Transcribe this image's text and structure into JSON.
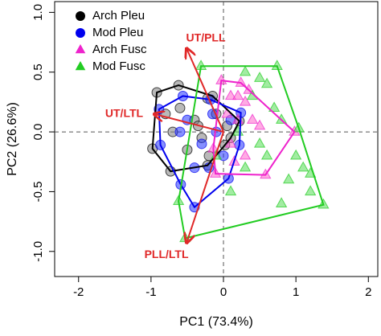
{
  "chart_data": {
    "type": "scatter",
    "x_label": "PC1 (73.4%)",
    "y_label": "PC2 (26.6%)",
    "xlim": [
      -2.33,
      2.13
    ],
    "ylim": [
      -1.21,
      1.09
    ],
    "xticks": [
      -2,
      -1,
      0,
      1,
      2
    ],
    "yticks": [
      {
        "value": -1,
        "label": "-1.0"
      },
      -0.5,
      {
        "value": 0,
        "label": "0.0"
      },
      0.5,
      {
        "value": 1,
        "label": "1.0"
      }
    ],
    "legend": "top-left",
    "series": [
      {
        "name": "Arch Pleu",
        "color": "#000000",
        "fill": "#7f7f7f",
        "marker": "circle",
        "x": [
          -0.92,
          -0.62,
          -0.22,
          0.22,
          0.02,
          -0.22,
          -0.73,
          -0.98,
          -0.6,
          -0.4,
          -0.3,
          -0.1,
          -0.5,
          -0.2,
          0.05,
          -0.7,
          -0.35,
          0.1,
          -0.15,
          -0.8
        ],
        "y": [
          0.33,
          0.39,
          0.28,
          0.09,
          -0.11,
          -0.28,
          -0.33,
          -0.14,
          0.2,
          0.1,
          -0.05,
          0.15,
          -0.15,
          -0.2,
          0.05,
          0.0,
          0.05,
          -0.05,
          0.3,
          0.15
        ]
      },
      {
        "name": "Mod Pleu",
        "color": "#0000ee",
        "fill": "#2233ff",
        "marker": "circle",
        "x": [
          -0.89,
          -0.56,
          -0.18,
          0.24,
          0.22,
          0.07,
          -0.4,
          -0.59,
          -0.87,
          -0.5,
          -0.3,
          -0.1,
          -0.2,
          0.0,
          -0.4,
          0.1,
          -0.6,
          -0.15
        ],
        "y": [
          0.19,
          0.3,
          0.27,
          0.16,
          -0.11,
          -0.39,
          -0.63,
          -0.44,
          -0.11,
          0.1,
          -0.1,
          0.0,
          -0.3,
          -0.2,
          -0.3,
          0.1,
          0.0,
          0.15
        ]
      },
      {
        "name": "Arch Fusc",
        "color": "#ee22cc",
        "fill": "#ff66cc",
        "marker": "triangle",
        "x": [
          -0.03,
          0.24,
          0.98,
          0.58,
          -0.11,
          -0.14,
          0.1,
          0.3,
          0.2,
          0.4,
          0.1,
          0.3,
          0.05,
          0.5,
          0.2,
          0.35,
          0.15
        ],
        "y": [
          0.43,
          0.41,
          0.0,
          -0.36,
          -0.35,
          -0.14,
          0.3,
          0.25,
          0.1,
          0.1,
          -0.1,
          -0.2,
          0.15,
          0.05,
          0.3,
          0.35,
          -0.25
        ]
      },
      {
        "name": "Mod Fusc",
        "color": "#22cc22",
        "fill": "#55dd55",
        "marker": "triangle",
        "x": [
          -0.31,
          0.74,
          1.04,
          1.38,
          -0.53,
          -0.62,
          0.3,
          0.5,
          0.6,
          0.4,
          0.7,
          0.8,
          1.0,
          1.1,
          1.2,
          0.9,
          0.8,
          0.6,
          0.2,
          -0.1,
          0.1,
          1.2,
          0.5,
          0.3
        ],
        "y": [
          0.55,
          0.55,
          0.03,
          -0.61,
          -0.89,
          -0.58,
          0.5,
          0.45,
          0.4,
          0.3,
          0.2,
          0.1,
          -0.2,
          -0.3,
          -0.35,
          -0.4,
          -0.6,
          -0.2,
          0.0,
          -0.2,
          -0.5,
          -0.5,
          -0.1,
          -0.3
        ]
      }
    ],
    "arrow_color": "#e02828",
    "arrows": [
      {
        "label": "UT/PLL",
        "x": -0.51,
        "y": 0.7
      },
      {
        "label": "UT/LTL",
        "x": -0.96,
        "y": 0.15
      },
      {
        "label": "PLL/LTL",
        "x": -0.51,
        "y": -0.93
      }
    ]
  }
}
